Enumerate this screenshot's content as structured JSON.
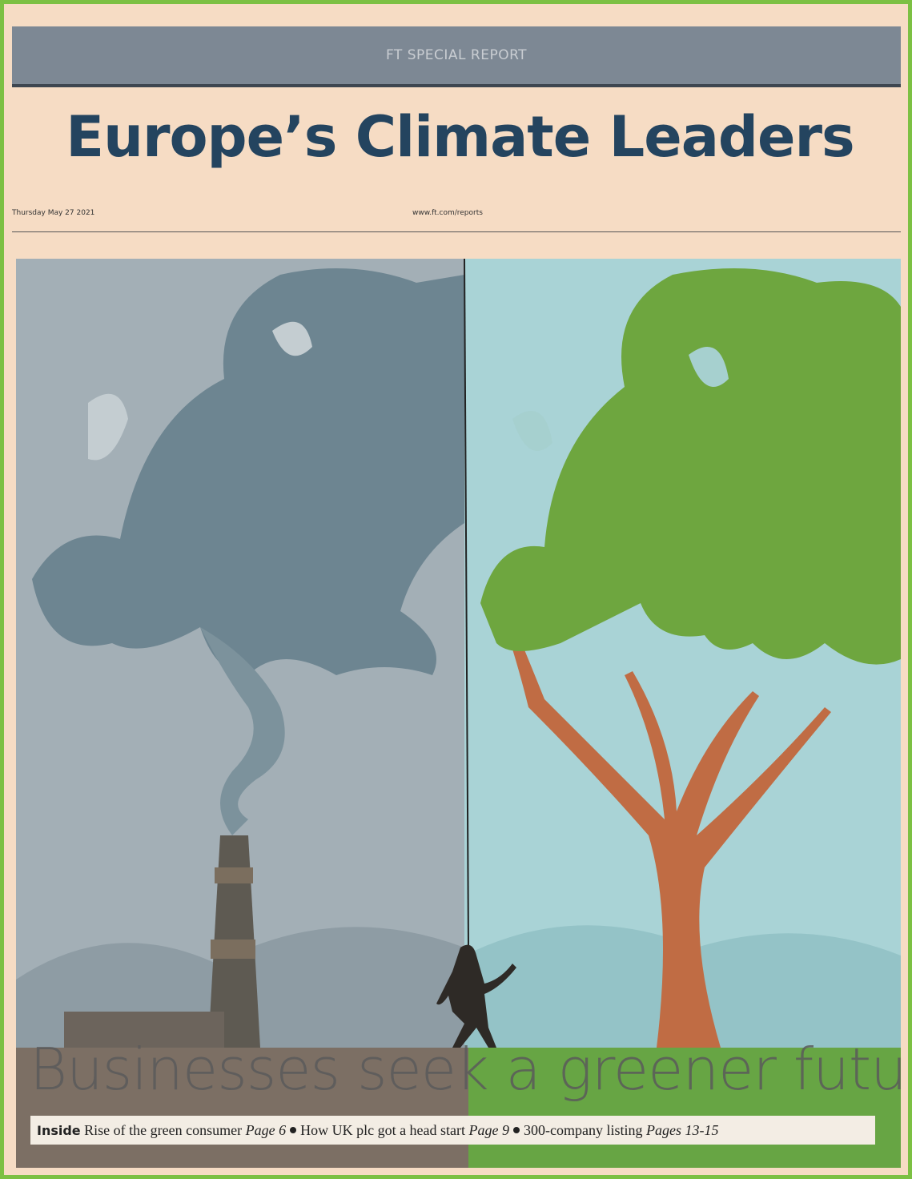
{
  "header": {
    "banner": "FT SPECIAL REPORT",
    "title": "Europe’s Climate Leaders",
    "date": "Thursday May 27 2021",
    "url": "www.ft.com/reports"
  },
  "cover": {
    "headline": "Businesses seek a greener future"
  },
  "inside": {
    "label": "Inside",
    "items": [
      {
        "text": "Rise of the green consumer",
        "page": "Page 6"
      },
      {
        "text": "How UK plc got a head start",
        "page": "Page 9"
      },
      {
        "text": "300-company listing",
        "page": "Pages 13-15"
      }
    ]
  }
}
